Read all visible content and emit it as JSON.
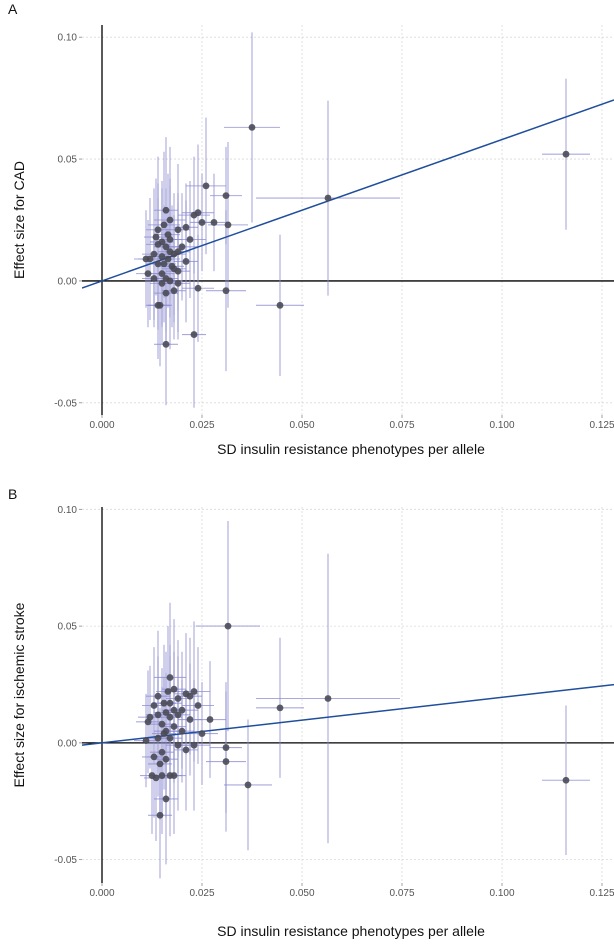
{
  "chart_data": [
    {
      "type": "scatter",
      "panel_label": "A",
      "xlabel": "SD insulin resistance phenotypes per allele",
      "ylabel": "Effect size for CAD",
      "xlim": [
        -0.005,
        0.128
      ],
      "ylim": [
        -0.055,
        0.105
      ],
      "x_ticks": [
        0.0,
        0.025,
        0.05,
        0.075,
        0.1,
        0.125
      ],
      "x_tick_labels": [
        "0.000",
        "0.025",
        "0.050",
        "0.075",
        "0.100",
        "0.125"
      ],
      "y_ticks": [
        -0.05,
        0.0,
        0.05,
        0.1
      ],
      "y_tick_labels": [
        "-0.05",
        "0.00",
        "0.05",
        "0.10"
      ],
      "grid": true,
      "fit_line": {
        "slope": 0.58,
        "intercept": 0.0
      },
      "colors": {
        "point": "#4a4a55",
        "error_bar": "#8c8cd2",
        "fit": "#1f4e9c",
        "axis": "#000000",
        "grid": "#d9d9d9"
      },
      "points": [
        {
          "x": 0.116,
          "y": 0.052,
          "xe": 0.006,
          "ye": 0.031
        },
        {
          "x": 0.0565,
          "y": 0.034,
          "xe": 0.018,
          "ye": 0.04
        },
        {
          "x": 0.0375,
          "y": 0.063,
          "xe": 0.007,
          "ye": 0.039
        },
        {
          "x": 0.0445,
          "y": -0.01,
          "xe": 0.006,
          "ye": 0.029
        },
        {
          "x": 0.0315,
          "y": 0.023,
          "xe": 0.005,
          "ye": 0.034
        },
        {
          "x": 0.031,
          "y": 0.035,
          "xe": 0.004,
          "ye": 0.02
        },
        {
          "x": 0.031,
          "y": -0.004,
          "xe": 0.005,
          "ye": 0.033
        },
        {
          "x": 0.026,
          "y": 0.039,
          "xe": 0.005,
          "ye": 0.028
        },
        {
          "x": 0.028,
          "y": 0.024,
          "xe": 0.004,
          "ye": 0.02
        },
        {
          "x": 0.023,
          "y": -0.022,
          "xe": 0.003,
          "ye": 0.03
        },
        {
          "x": 0.024,
          "y": 0.028,
          "xe": 0.004,
          "ye": 0.028
        },
        {
          "x": 0.023,
          "y": 0.027,
          "xe": 0.004,
          "ye": 0.024
        },
        {
          "x": 0.025,
          "y": 0.024,
          "xe": 0.003,
          "ye": 0.02
        },
        {
          "x": 0.024,
          "y": -0.003,
          "xe": 0.004,
          "ye": 0.022
        },
        {
          "x": 0.022,
          "y": 0.017,
          "xe": 0.004,
          "ye": 0.024
        },
        {
          "x": 0.021,
          "y": 0.022,
          "xe": 0.003,
          "ye": 0.018
        },
        {
          "x": 0.021,
          "y": 0.008,
          "xe": 0.003,
          "ye": 0.025
        },
        {
          "x": 0.02,
          "y": 0.014,
          "xe": 0.004,
          "ye": 0.022
        },
        {
          "x": 0.019,
          "y": 0.021,
          "xe": 0.003,
          "ye": 0.027
        },
        {
          "x": 0.019,
          "y": 0.004,
          "xe": 0.003,
          "ye": 0.028
        },
        {
          "x": 0.018,
          "y": 0.011,
          "xe": 0.003,
          "ye": 0.025
        },
        {
          "x": 0.018,
          "y": -0.004,
          "xe": 0.003,
          "ye": 0.02
        },
        {
          "x": 0.017,
          "y": 0.025,
          "xe": 0.004,
          "ye": 0.03
        },
        {
          "x": 0.017,
          "y": 0.012,
          "xe": 0.003,
          "ye": 0.027
        },
        {
          "x": 0.0175,
          "y": 0.006,
          "xe": 0.003,
          "ye": 0.025
        },
        {
          "x": 0.017,
          "y": 0.0,
          "xe": 0.003,
          "ye": 0.028
        },
        {
          "x": 0.0165,
          "y": 0.019,
          "xe": 0.003,
          "ye": 0.025
        },
        {
          "x": 0.0165,
          "y": 0.009,
          "xe": 0.003,
          "ye": 0.02
        },
        {
          "x": 0.016,
          "y": 0.029,
          "xe": 0.003,
          "ye": 0.03
        },
        {
          "x": 0.016,
          "y": 0.014,
          "xe": 0.003,
          "ye": 0.024
        },
        {
          "x": 0.016,
          "y": -0.005,
          "xe": 0.003,
          "ye": 0.02
        },
        {
          "x": 0.016,
          "y": -0.026,
          "xe": 0.003,
          "ye": 0.025
        },
        {
          "x": 0.0155,
          "y": 0.023,
          "xe": 0.004,
          "ye": 0.03
        },
        {
          "x": 0.015,
          "y": 0.016,
          "xe": 0.003,
          "ye": 0.025
        },
        {
          "x": 0.015,
          "y": 0.01,
          "xe": 0.003,
          "ye": 0.028
        },
        {
          "x": 0.015,
          "y": 0.003,
          "xe": 0.003,
          "ye": 0.022
        },
        {
          "x": 0.015,
          "y": -0.001,
          "xe": 0.003,
          "ye": 0.025
        },
        {
          "x": 0.014,
          "y": 0.021,
          "xe": 0.003,
          "ye": 0.03
        },
        {
          "x": 0.014,
          "y": 0.015,
          "xe": 0.003,
          "ye": 0.025
        },
        {
          "x": 0.014,
          "y": 0.007,
          "xe": 0.003,
          "ye": 0.027
        },
        {
          "x": 0.014,
          "y": -0.01,
          "xe": 0.003,
          "ye": 0.022
        },
        {
          "x": 0.0135,
          "y": 0.018,
          "xe": 0.003,
          "ye": 0.024
        },
        {
          "x": 0.013,
          "y": 0.011,
          "xe": 0.003,
          "ye": 0.027
        },
        {
          "x": 0.013,
          "y": 0.001,
          "xe": 0.003,
          "ye": 0.02
        },
        {
          "x": 0.012,
          "y": 0.009,
          "xe": 0.003,
          "ye": 0.025
        },
        {
          "x": 0.0115,
          "y": 0.003,
          "xe": 0.003,
          "ye": 0.022
        },
        {
          "x": 0.011,
          "y": 0.009,
          "xe": 0.003,
          "ye": 0.02
        },
        {
          "x": 0.018,
          "y": 0.005,
          "xe": 0.003,
          "ye": 0.022
        },
        {
          "x": 0.019,
          "y": 0.012,
          "xe": 0.003,
          "ye": 0.024
        },
        {
          "x": 0.016,
          "y": 0.001,
          "xe": 0.003,
          "ye": 0.022
        },
        {
          "x": 0.0145,
          "y": -0.01,
          "xe": 0.003,
          "ye": 0.025
        },
        {
          "x": 0.017,
          "y": 0.017,
          "xe": 0.003,
          "ye": 0.025
        },
        {
          "x": 0.0155,
          "y": 0.007,
          "xe": 0.003,
          "ye": 0.024
        },
        {
          "x": 0.019,
          "y": -0.001,
          "xe": 0.003,
          "ye": 0.02
        }
      ]
    },
    {
      "type": "scatter",
      "panel_label": "B",
      "xlabel": "SD insulin resistance phenotypes per allele",
      "ylabel": "Effect size for ischemic stroke",
      "xlim": [
        -0.005,
        0.128
      ],
      "ylim": [
        -0.06,
        0.101
      ],
      "x_ticks": [
        0.0,
        0.025,
        0.05,
        0.075,
        0.1,
        0.125
      ],
      "x_tick_labels": [
        "0.000",
        "0.025",
        "0.050",
        "0.075",
        "0.100",
        "0.125"
      ],
      "y_ticks": [
        -0.05,
        0.0,
        0.05,
        0.1
      ],
      "y_tick_labels": [
        "-0.05",
        "0.00",
        "0.05",
        "0.10"
      ],
      "grid": true,
      "fit_line": {
        "slope": 0.195,
        "intercept": 0.0
      },
      "colors": {
        "point": "#4a4a55",
        "error_bar": "#8c8cd2",
        "fit": "#1f4e9c",
        "axis": "#000000",
        "grid": "#d9d9d9"
      },
      "points": [
        {
          "x": 0.116,
          "y": -0.016,
          "xe": 0.006,
          "ye": 0.032
        },
        {
          "x": 0.0565,
          "y": 0.019,
          "xe": 0.018,
          "ye": 0.062
        },
        {
          "x": 0.0445,
          "y": 0.015,
          "xe": 0.006,
          "ye": 0.03
        },
        {
          "x": 0.0365,
          "y": -0.018,
          "xe": 0.006,
          "ye": 0.028
        },
        {
          "x": 0.0315,
          "y": 0.05,
          "xe": 0.008,
          "ye": 0.045
        },
        {
          "x": 0.031,
          "y": -0.008,
          "xe": 0.005,
          "ye": 0.03
        },
        {
          "x": 0.031,
          "y": -0.002,
          "xe": 0.004,
          "ye": 0.028
        },
        {
          "x": 0.027,
          "y": 0.01,
          "xe": 0.004,
          "ye": 0.025
        },
        {
          "x": 0.025,
          "y": 0.004,
          "xe": 0.004,
          "ye": 0.022
        },
        {
          "x": 0.024,
          "y": 0.016,
          "xe": 0.004,
          "ye": 0.025
        },
        {
          "x": 0.023,
          "y": 0.022,
          "xe": 0.004,
          "ye": 0.03
        },
        {
          "x": 0.023,
          "y": -0.001,
          "xe": 0.004,
          "ye": 0.028
        },
        {
          "x": 0.022,
          "y": 0.02,
          "xe": 0.003,
          "ye": 0.025
        },
        {
          "x": 0.022,
          "y": 0.01,
          "xe": 0.003,
          "ye": 0.024
        },
        {
          "x": 0.021,
          "y": -0.003,
          "xe": 0.003,
          "ye": 0.026
        },
        {
          "x": 0.02,
          "y": 0.014,
          "xe": 0.004,
          "ye": 0.025
        },
        {
          "x": 0.02,
          "y": 0.005,
          "xe": 0.003,
          "ye": 0.022
        },
        {
          "x": 0.019,
          "y": 0.019,
          "xe": 0.003,
          "ye": 0.025
        },
        {
          "x": 0.019,
          "y": 0.012,
          "xe": 0.003,
          "ye": 0.025
        },
        {
          "x": 0.019,
          "y": -0.001,
          "xe": 0.003,
          "ye": 0.028
        },
        {
          "x": 0.018,
          "y": 0.023,
          "xe": 0.003,
          "ye": 0.03
        },
        {
          "x": 0.018,
          "y": 0.007,
          "xe": 0.003,
          "ye": 0.024
        },
        {
          "x": 0.018,
          "y": -0.014,
          "xe": 0.003,
          "ye": 0.025
        },
        {
          "x": 0.017,
          "y": 0.028,
          "xe": 0.004,
          "ye": 0.032
        },
        {
          "x": 0.017,
          "y": 0.017,
          "xe": 0.003,
          "ye": 0.025
        },
        {
          "x": 0.017,
          "y": 0.011,
          "xe": 0.003,
          "ye": 0.026
        },
        {
          "x": 0.017,
          "y": 0.002,
          "xe": 0.003,
          "ye": 0.025
        },
        {
          "x": 0.017,
          "y": -0.014,
          "xe": 0.003,
          "ye": 0.026
        },
        {
          "x": 0.0165,
          "y": 0.022,
          "xe": 0.003,
          "ye": 0.028
        },
        {
          "x": 0.016,
          "y": 0.013,
          "xe": 0.003,
          "ye": 0.026
        },
        {
          "x": 0.016,
          "y": 0.005,
          "xe": 0.003,
          "ye": 0.025
        },
        {
          "x": 0.016,
          "y": -0.007,
          "xe": 0.003,
          "ye": 0.025
        },
        {
          "x": 0.016,
          "y": -0.024,
          "xe": 0.003,
          "ye": 0.028
        },
        {
          "x": 0.0155,
          "y": 0.017,
          "xe": 0.003,
          "ye": 0.025
        },
        {
          "x": 0.015,
          "y": 0.008,
          "xe": 0.003,
          "ye": 0.024
        },
        {
          "x": 0.015,
          "y": -0.004,
          "xe": 0.003,
          "ye": 0.028
        },
        {
          "x": 0.015,
          "y": -0.014,
          "xe": 0.003,
          "ye": 0.025
        },
        {
          "x": 0.0145,
          "y": -0.031,
          "xe": 0.003,
          "ye": 0.027
        },
        {
          "x": 0.014,
          "y": 0.02,
          "xe": 0.003,
          "ye": 0.028
        },
        {
          "x": 0.014,
          "y": 0.012,
          "xe": 0.003,
          "ye": 0.025
        },
        {
          "x": 0.014,
          "y": 0.002,
          "xe": 0.003,
          "ye": 0.025
        },
        {
          "x": 0.0135,
          "y": -0.015,
          "xe": 0.003,
          "ye": 0.027
        },
        {
          "x": 0.013,
          "y": 0.016,
          "xe": 0.003,
          "ye": 0.025
        },
        {
          "x": 0.013,
          "y": -0.006,
          "xe": 0.003,
          "ye": 0.026
        },
        {
          "x": 0.0125,
          "y": -0.014,
          "xe": 0.003,
          "ye": 0.025
        },
        {
          "x": 0.012,
          "y": 0.011,
          "xe": 0.003,
          "ye": 0.022
        },
        {
          "x": 0.0115,
          "y": 0.009,
          "xe": 0.003,
          "ye": 0.022
        },
        {
          "x": 0.011,
          "y": 0.001,
          "xe": 0.003,
          "ye": 0.02
        },
        {
          "x": 0.0155,
          "y": 0.004,
          "xe": 0.003,
          "ye": 0.024
        },
        {
          "x": 0.018,
          "y": 0.014,
          "xe": 0.003,
          "ye": 0.025
        },
        {
          "x": 0.0145,
          "y": -0.009,
          "xe": 0.003,
          "ye": 0.024
        },
        {
          "x": 0.021,
          "y": 0.021,
          "xe": 0.003,
          "ye": 0.026
        }
      ]
    }
  ]
}
